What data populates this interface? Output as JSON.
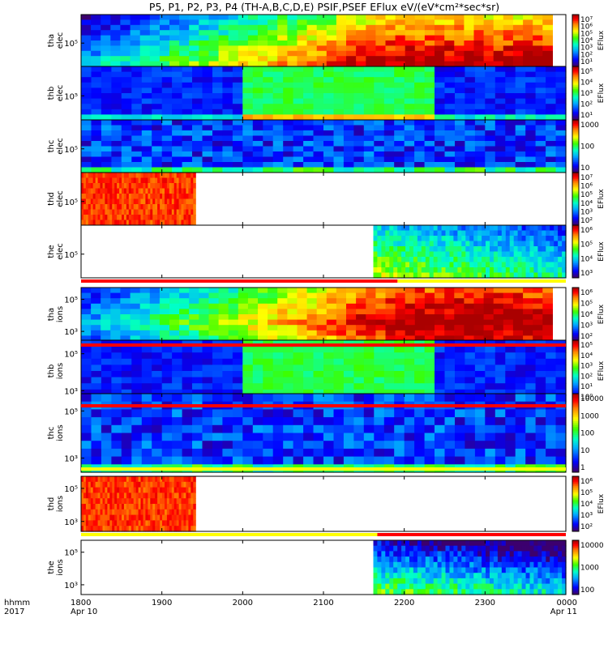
{
  "title": "P5, P1, P2, P3, P4 (TH-A,B,C,D,E) PSIF,PSEF EFlux eV/(eV*cm²*sec*sr)",
  "bottom_left": {
    "line1": "hhmm",
    "line2": "2017"
  },
  "x_ticks": [
    "1800",
    "1900",
    "2000",
    "2100",
    "2200",
    "2300",
    "0000"
  ],
  "x_dates": {
    "start": "Apr 10",
    "end": "Apr 11"
  },
  "chart_data": {
    "type": "heatmap",
    "xlabel": "hhmm 2017",
    "x_range": [
      "2017-04-10 18:00",
      "2017-04-11 00:00"
    ],
    "y_scale": "log",
    "panels": [
      {
        "id": "tha_elec",
        "label1": "tha",
        "label2": "elec",
        "yticks": [
          "10⁵"
        ],
        "colorbar_title": "EFlux",
        "colorbar_ticks": [
          "10⁷",
          "10⁶",
          "10⁵",
          "10⁴",
          "10³",
          "10²",
          "10¹"
        ],
        "data_span": [
          "18:00",
          "23:50"
        ],
        "fill": "tha_e"
      },
      {
        "id": "thb_elec",
        "label1": "thb",
        "label2": "elec",
        "yticks": [
          "10⁵"
        ],
        "colorbar_title": "EFlux",
        "colorbar_ticks": [
          "10⁵",
          "10⁴",
          "10³",
          "10²",
          "10¹"
        ],
        "data_span": [
          "18:00",
          "00:00"
        ],
        "fill": "thb_e"
      },
      {
        "id": "thc_elec",
        "label1": "thc",
        "label2": "elec",
        "yticks": [
          "10⁵"
        ],
        "colorbar_title": "",
        "colorbar_ticks": [
          "1000",
          "100",
          "10"
        ],
        "data_span": [
          "18:00",
          "00:00"
        ],
        "fill": "thc_e"
      },
      {
        "id": "thd_elec",
        "label1": "thd",
        "label2": "elec",
        "yticks": [
          "10⁵"
        ],
        "colorbar_title": "EFlux",
        "colorbar_ticks": [
          "10⁷",
          "10⁶",
          "10⁵",
          "10⁴",
          "10³",
          "10²"
        ],
        "data_span": [
          "18:00",
          "19:25"
        ],
        "fill": "hot"
      },
      {
        "id": "the_elec",
        "label1": "the",
        "label2": "elec",
        "yticks": [
          "10⁵"
        ],
        "colorbar_title": "EFlux",
        "colorbar_ticks": [
          "10⁶",
          "10⁵",
          "10⁴",
          "10³"
        ],
        "data_span": [
          "21:37",
          "00:00"
        ],
        "fill": "the_e"
      },
      {
        "id": "tha_ions",
        "label1": "tha",
        "label2": "ions",
        "yticks": [
          "10⁵",
          "10³"
        ],
        "colorbar_title": "EFlux",
        "colorbar_ticks": [
          "10⁶",
          "10⁵",
          "10⁴",
          "10³",
          "10²"
        ],
        "data_span": [
          "18:00",
          "23:50"
        ],
        "fill": "tha_i"
      },
      {
        "id": "thb_ions",
        "label1": "thb",
        "label2": "ions",
        "yticks": [
          "10⁵",
          "10³"
        ],
        "colorbar_title": "EFlux",
        "colorbar_ticks": [
          "10⁵",
          "10⁴",
          "10³",
          "10²",
          "10¹",
          "10⁰"
        ],
        "data_span": [
          "18:00",
          "00:00"
        ],
        "fill": "thb_i"
      },
      {
        "id": "thc_ions",
        "label1": "thc",
        "label2": "ions",
        "yticks": [
          "10⁵",
          "10³"
        ],
        "colorbar_title": "",
        "colorbar_ticks": [
          "10000",
          "1000",
          "100",
          "10",
          "1"
        ],
        "data_span": [
          "18:00",
          "00:00"
        ],
        "fill": "thc_i"
      },
      {
        "id": "thd_ions",
        "label1": "thd",
        "label2": "ions",
        "yticks": [
          "10⁵",
          "10³"
        ],
        "colorbar_title": "EFlux",
        "colorbar_ticks": [
          "10⁶",
          "10⁵",
          "10⁴",
          "10³",
          "10²"
        ],
        "data_span": [
          "18:00",
          "19:25"
        ],
        "fill": "hot"
      },
      {
        "id": "the_ions",
        "label1": "the",
        "label2": "ions",
        "yticks": [
          "10⁵",
          "10³"
        ],
        "colorbar_title": "",
        "colorbar_ticks": [
          "10000",
          "1000",
          "100"
        ],
        "data_span": [
          "21:37",
          "00:00"
        ],
        "fill": "the_i"
      }
    ],
    "mode_bars": [
      {
        "after_panel": "the_elec",
        "segments": [
          {
            "from": "18:00",
            "to": "21:55",
            "color": "#ff0000"
          },
          {
            "from": "21:55",
            "to": "00:00",
            "color": "#ffff00"
          }
        ]
      },
      {
        "after_panel": "tha_ions",
        "segments": [
          {
            "from": "18:00",
            "to": "00:00",
            "color": "#ff0000"
          }
        ]
      },
      {
        "after_panel": "thb_ions",
        "segments": [
          {
            "from": "18:00",
            "to": "00:00",
            "color": "#ff0000"
          }
        ]
      },
      {
        "after_panel": "thc_ions",
        "segments": [
          {
            "from": "18:00",
            "to": "00:00",
            "color": "#ffff00"
          }
        ]
      },
      {
        "after_panel": "thd_ions",
        "segments": [
          {
            "from": "18:00",
            "to": "21:40",
            "color": "#ffff00"
          },
          {
            "from": "21:40",
            "to": "00:00",
            "color": "#ff0000"
          }
        ]
      }
    ]
  }
}
